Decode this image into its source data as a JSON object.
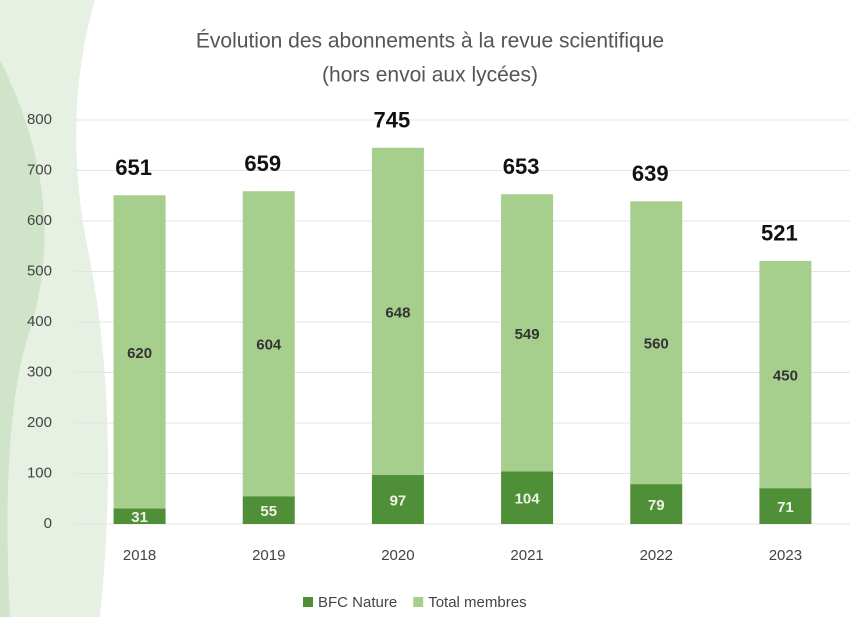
{
  "chart_data": {
    "type": "stacked_bar",
    "title": "Évolution des abonnements à la revue scientifique",
    "subtitle": "(hors envoi aux lycées)",
    "categories": [
      "2018",
      "2019",
      "2020",
      "2021",
      "2022",
      "2023"
    ],
    "series": [
      {
        "name": "BFC Nature",
        "color": "#4f8f38",
        "values": [
          31,
          55,
          97,
          104,
          79,
          71
        ]
      },
      {
        "name": "Total membres",
        "color": "#a6cf8e",
        "values": [
          620,
          604,
          648,
          549,
          560,
          450
        ]
      }
    ],
    "totals": [
      651,
      659,
      745,
      653,
      639,
      521
    ],
    "ylim": [
      0,
      800
    ],
    "yticks": [
      0,
      100,
      200,
      300,
      400,
      500,
      600,
      700,
      800
    ],
    "grid": true,
    "legend": "bottom"
  }
}
